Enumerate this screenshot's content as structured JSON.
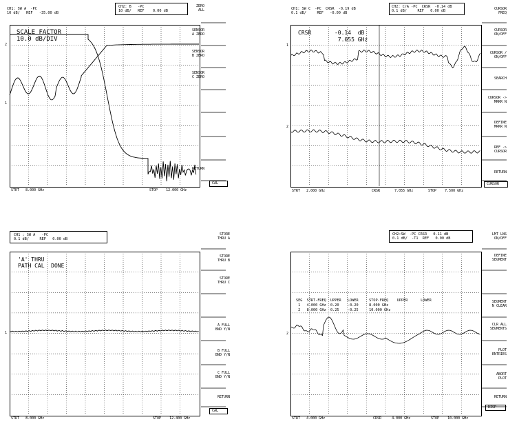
{
  "panels": [
    {
      "hdr_left": "CH1: SW A  -PC\n10 dB/   REF   -35.00 dB",
      "hdr_right": "CH2: B   -PC\n10 dB/   REF    0.00 dB",
      "annotation": "SCALE FACTOR\n10.0 dB/DIV",
      "bottom_left": "STRT   8.000 GHz",
      "bottom_mid": "",
      "bottom_right": "STOP    12.000 GHz",
      "marker_labels": [
        "2",
        "1"
      ],
      "softkeys": [
        "ZERO\nALL",
        "SENSOR\nA ZERO",
        "SENSOR\nB ZERO",
        "SENSOR\nC ZERO",
        "",
        "",
        "",
        "RETURN"
      ],
      "active_key": "CAL"
    },
    {
      "hdr_left": "CH1: SW C  -PC  CRSR  -0.19 dB\n0.1 dB/     REF   -0.00 dB",
      "hdr_right": "CH2: C/A -PC  CRSR  -0.14 dB\n0.1 dB/     REF   0.00 dB",
      "annotation": "CRSR       -0.14  dB\n            7.055 GHz",
      "bottom_left": "STRT   2.000 GHz",
      "bottom_mid": "CRSR       7.055 GHz",
      "bottom_right": "STOP    7.500 GHz",
      "marker_labels": [
        "1",
        "2"
      ],
      "softkeys": [
        "CURSOR\nFREQ",
        "CURSOR\nON/OFF",
        "CURSOR /\nON/OFF",
        "SEARCH",
        "CURSOR ->\nMRKR N",
        "DEFINE\nMRKR N",
        "REF ->\nCURSOR",
        "RETURN"
      ],
      "active_key": "CURSOR"
    },
    {
      "hdr_left": "CH1 : SW A   -PC\n0.1 dB/     REF   0.00 dB",
      "hdr_right": "",
      "annotation": "'A' THRU\nPATH CAL  DONE",
      "bottom_left": "STRT   8.000 GHz",
      "bottom_mid": "",
      "bottom_right": "STOP    12.400 GHz",
      "marker_labels": [
        "1"
      ],
      "softkeys": [
        "STORE\nTHRU A",
        "STORE\nTHRU B",
        "STORE\nTHRU C",
        "",
        "A FULL\nBND Y/N",
        "B FULL\nBND Y/N",
        "C FULL\nBND Y/N",
        "RETURN"
      ],
      "active_key": "CAL"
    },
    {
      "hdr_left": "",
      "hdr_right": "CH2:SW  -PC CRSR   0.11 dB\n0.1 dB/  -T1  REF   0.00 dB",
      "annotation": "SEG  STRT-FREQ  UPPER   LOWER     STOP-FREQ    UPPER      LOWER\n 1   4.000 GHz  0.20    -0.20     8.000 GHz\n 2   8.000 GHz  0.25    -0.25     10.000 GHz",
      "bottom_left": "STRT   4.000 GHz",
      "bottom_mid": "CRSR     4.000 GHz",
      "bottom_right": "STOP    10.000 GHz",
      "marker_labels": [
        "2"
      ],
      "softkeys": [
        "LMT LNS\nON/OFF",
        "DEFINE\nSEGMENT",
        "",
        "SEGMENT\nN CLEAR",
        "CLR ALL\nSEGMENTS",
        "PLOT\nENTRIES",
        "ABORT\nPLOT",
        "RETURN"
      ],
      "active_key": "DISP"
    }
  ]
}
